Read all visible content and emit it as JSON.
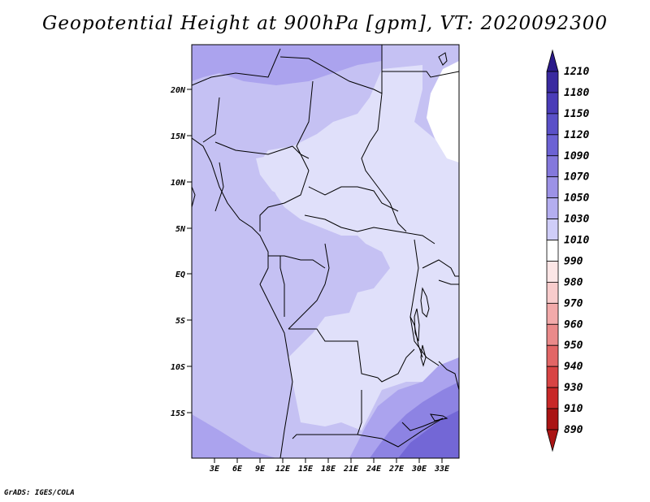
{
  "title": "Geopotential Height at 900hPa [gpm], VT: 2020092300",
  "credit": "GrADS: IGES/COLA",
  "lat_labels": [
    "20N",
    "15N",
    "10N",
    "5N",
    "EQ",
    "5S",
    "10S",
    "15S"
  ],
  "lon_labels": [
    "3E",
    "6E",
    "9E",
    "12E",
    "15E",
    "18E",
    "21E",
    "24E",
    "27E",
    "30E",
    "33E"
  ],
  "colorbar": {
    "levels": [
      "1210",
      "1180",
      "1150",
      "1120",
      "1090",
      "1070",
      "1050",
      "1030",
      "1010",
      "990",
      "980",
      "970",
      "960",
      "950",
      "940",
      "930",
      "910",
      "890"
    ],
    "colors": [
      "#2b1a8a",
      "#3a2aa0",
      "#4a3cb8",
      "#5a50c8",
      "#6c62d4",
      "#8478dc",
      "#9c92e6",
      "#b4aef0",
      "#cfcdf8",
      "#ffffff",
      "#fce6e6",
      "#f8cccc",
      "#f2aaaa",
      "#ea8a8a",
      "#e26666",
      "#d84444",
      "#c82828",
      "#aa1414"
    ]
  },
  "map_colors": {
    "level_1010": "#e0e0fa",
    "level_1030": "#c5c1f3",
    "level_1050": "#aba3ee",
    "level_1070": "#8d83e3",
    "level_1090": "#7367d6",
    "above_1010": "#ffffff"
  }
}
